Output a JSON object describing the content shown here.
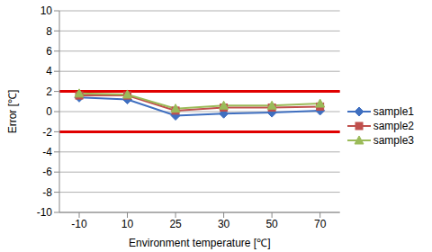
{
  "chart_data": {
    "type": "line",
    "categories": [
      "-10",
      "10",
      "25",
      "30",
      "50",
      "70"
    ],
    "series": [
      {
        "name": "sample1",
        "color": "#3f6fc0",
        "marker": "diamond",
        "values": [
          1.4,
          1.2,
          -0.4,
          -0.2,
          -0.1,
          0.1
        ]
      },
      {
        "name": "sample2",
        "color": "#c0504d",
        "marker": "square",
        "values": [
          1.6,
          1.6,
          0.1,
          0.4,
          0.4,
          0.5
        ]
      },
      {
        "name": "sample3",
        "color": "#9bbb59",
        "marker": "triangle",
        "values": [
          1.8,
          1.7,
          0.3,
          0.6,
          0.6,
          0.8
        ]
      }
    ],
    "x_label": "Environment temperature [℃]",
    "y_label": "Error [℃]",
    "ylim": [
      -10,
      10
    ],
    "yticks": [
      -10,
      -8,
      -6,
      -4,
      -2,
      0,
      2,
      4,
      6,
      8,
      10
    ],
    "grid": true,
    "legend": "right",
    "reference_lines": {
      "values": [
        2,
        -2
      ],
      "color": "#e00000"
    }
  }
}
